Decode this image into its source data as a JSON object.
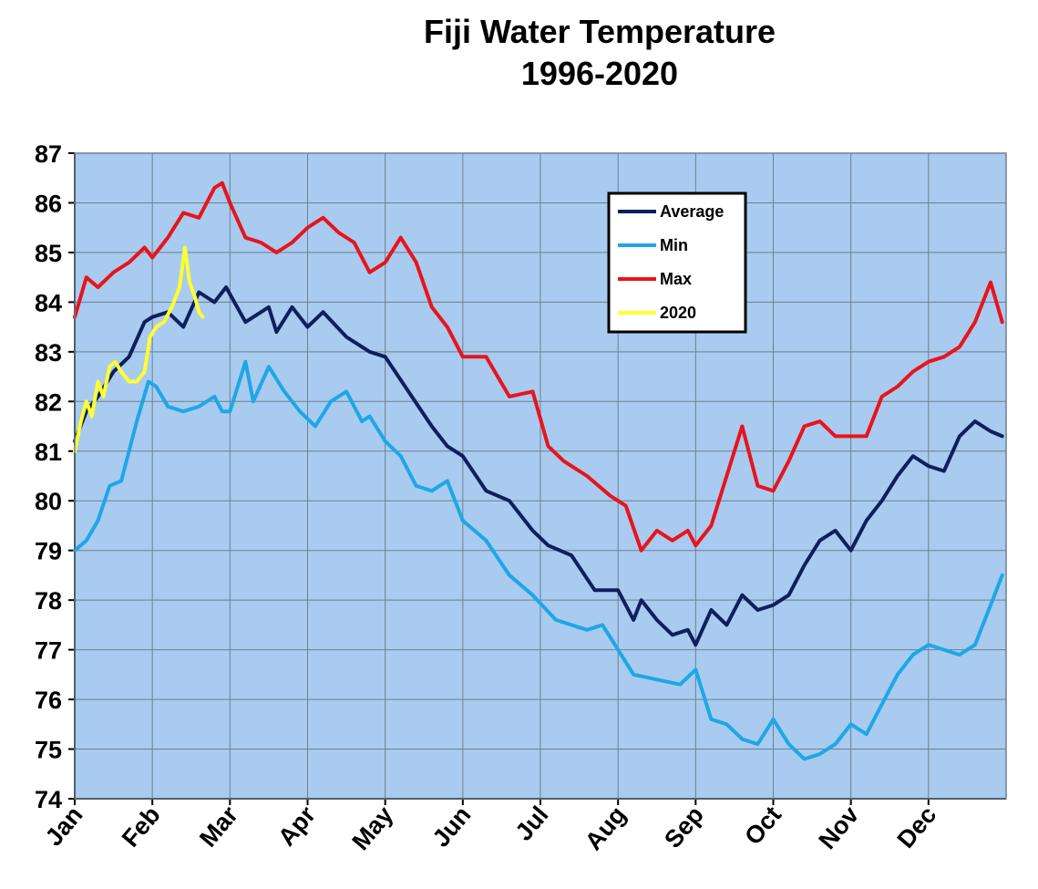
{
  "chart_data": {
    "type": "line",
    "title": "Fiji Water Temperature",
    "subtitle": "1996-2020",
    "xlabel": "",
    "ylabel": "",
    "ylim": [
      74,
      87
    ],
    "yticks": [
      74,
      75,
      76,
      77,
      78,
      79,
      80,
      81,
      82,
      83,
      84,
      85,
      86,
      87
    ],
    "xlim": [
      0,
      12
    ],
    "categories": [
      "Jan",
      "Feb",
      "Mar",
      "Apr",
      "May",
      "Jun",
      "Jul",
      "Aug",
      "Sep",
      "Oct",
      "Nov",
      "Dec"
    ],
    "grid": true,
    "legend": "top-right",
    "series": [
      {
        "name": "Average",
        "color": "#0d1f5c",
        "x": [
          0,
          0.15,
          0.3,
          0.5,
          0.7,
          0.9,
          1.0,
          1.2,
          1.4,
          1.6,
          1.8,
          1.95,
          2.2,
          2.5,
          2.6,
          2.8,
          3.0,
          3.2,
          3.5,
          3.8,
          4.0,
          4.3,
          4.6,
          4.8,
          5.0,
          5.3,
          5.6,
          5.9,
          6.1,
          6.4,
          6.7,
          7.0,
          7.2,
          7.3,
          7.5,
          7.7,
          7.9,
          8.0,
          8.2,
          8.4,
          8.6,
          8.8,
          9.0,
          9.2,
          9.4,
          9.6,
          9.8,
          10.0,
          10.2,
          10.4,
          10.6,
          10.8,
          11.0,
          11.2,
          11.4,
          11.6,
          11.8,
          11.95
        ],
        "values": [
          81.2,
          81.8,
          82.1,
          82.6,
          82.9,
          83.6,
          83.7,
          83.8,
          83.5,
          84.2,
          84.0,
          84.3,
          83.6,
          83.9,
          83.4,
          83.9,
          83.5,
          83.8,
          83.3,
          83.0,
          82.9,
          82.2,
          81.5,
          81.1,
          80.9,
          80.2,
          80.0,
          79.4,
          79.1,
          78.9,
          78.2,
          78.2,
          77.6,
          78.0,
          77.6,
          77.3,
          77.4,
          77.1,
          77.8,
          77.5,
          78.1,
          77.8,
          77.9,
          78.1,
          78.7,
          79.2,
          79.4,
          79.0,
          79.6,
          80.0,
          80.5,
          80.9,
          80.7,
          80.6,
          81.3,
          81.6,
          81.4,
          81.3
        ]
      },
      {
        "name": "Min",
        "color": "#1ea7e6",
        "x": [
          0,
          0.15,
          0.3,
          0.45,
          0.6,
          0.8,
          0.95,
          1.05,
          1.2,
          1.4,
          1.6,
          1.8,
          1.9,
          2.0,
          2.2,
          2.3,
          2.5,
          2.7,
          2.9,
          3.1,
          3.3,
          3.5,
          3.7,
          3.8,
          4.0,
          4.2,
          4.4,
          4.6,
          4.8,
          5.0,
          5.3,
          5.6,
          5.9,
          6.2,
          6.4,
          6.6,
          6.8,
          7.0,
          7.2,
          7.5,
          7.8,
          8.0,
          8.2,
          8.4,
          8.6,
          8.8,
          9.0,
          9.2,
          9.4,
          9.6,
          9.8,
          10.0,
          10.2,
          10.4,
          10.6,
          10.8,
          11.0,
          11.2,
          11.4,
          11.6,
          11.8,
          11.95
        ],
        "values": [
          79.0,
          79.2,
          79.6,
          80.3,
          80.4,
          81.6,
          82.4,
          82.3,
          81.9,
          81.8,
          81.9,
          82.1,
          81.8,
          81.8,
          82.8,
          82.0,
          82.7,
          82.2,
          81.8,
          81.5,
          82.0,
          82.2,
          81.6,
          81.7,
          81.2,
          80.9,
          80.3,
          80.2,
          80.4,
          79.6,
          79.2,
          78.5,
          78.1,
          77.6,
          77.5,
          77.4,
          77.5,
          77.0,
          76.5,
          76.4,
          76.3,
          76.6,
          75.6,
          75.5,
          75.2,
          75.1,
          75.6,
          75.1,
          74.8,
          74.9,
          75.1,
          75.5,
          75.3,
          75.9,
          76.5,
          76.9,
          77.1,
          77.0,
          76.9,
          77.1,
          77.9,
          78.5
        ]
      },
      {
        "name": "Max",
        "color": "#e8141c",
        "x": [
          0,
          0.15,
          0.3,
          0.5,
          0.7,
          0.9,
          1.0,
          1.2,
          1.4,
          1.6,
          1.8,
          1.9,
          2.0,
          2.2,
          2.4,
          2.6,
          2.8,
          3.0,
          3.2,
          3.4,
          3.6,
          3.8,
          4.0,
          4.2,
          4.4,
          4.6,
          4.8,
          5.0,
          5.3,
          5.6,
          5.9,
          6.1,
          6.3,
          6.6,
          6.9,
          7.1,
          7.3,
          7.5,
          7.7,
          7.9,
          8.0,
          8.2,
          8.4,
          8.6,
          8.8,
          9.0,
          9.2,
          9.4,
          9.6,
          9.8,
          10.0,
          10.2,
          10.4,
          10.6,
          10.8,
          11.0,
          11.2,
          11.4,
          11.6,
          11.8,
          11.95
        ],
        "values": [
          83.7,
          84.5,
          84.3,
          84.6,
          84.8,
          85.1,
          84.9,
          85.3,
          85.8,
          85.7,
          86.3,
          86.4,
          86.0,
          85.3,
          85.2,
          85.0,
          85.2,
          85.5,
          85.7,
          85.4,
          85.2,
          84.6,
          84.8,
          85.3,
          84.8,
          83.9,
          83.5,
          82.9,
          82.9,
          82.1,
          82.2,
          81.1,
          80.8,
          80.5,
          80.1,
          79.9,
          79.0,
          79.4,
          79.2,
          79.4,
          79.1,
          79.5,
          80.5,
          81.5,
          80.3,
          80.2,
          80.8,
          81.5,
          81.6,
          81.3,
          81.3,
          81.3,
          82.1,
          82.3,
          82.6,
          82.8,
          82.9,
          83.1,
          83.6,
          84.4,
          83.6
        ]
      },
      {
        "name": "2020",
        "color": "#ffff33",
        "x": [
          0,
          0.08,
          0.15,
          0.22,
          0.3,
          0.37,
          0.45,
          0.52,
          0.6,
          0.7,
          0.8,
          0.9,
          0.97,
          1.05,
          1.15,
          1.25,
          1.35,
          1.42,
          1.48,
          1.55,
          1.6,
          1.65
        ],
        "values": [
          81.0,
          81.6,
          82.0,
          81.7,
          82.4,
          82.1,
          82.7,
          82.8,
          82.6,
          82.4,
          82.4,
          82.6,
          83.3,
          83.5,
          83.6,
          83.9,
          84.3,
          85.1,
          84.4,
          84.1,
          83.8,
          83.7
        ]
      }
    ]
  }
}
